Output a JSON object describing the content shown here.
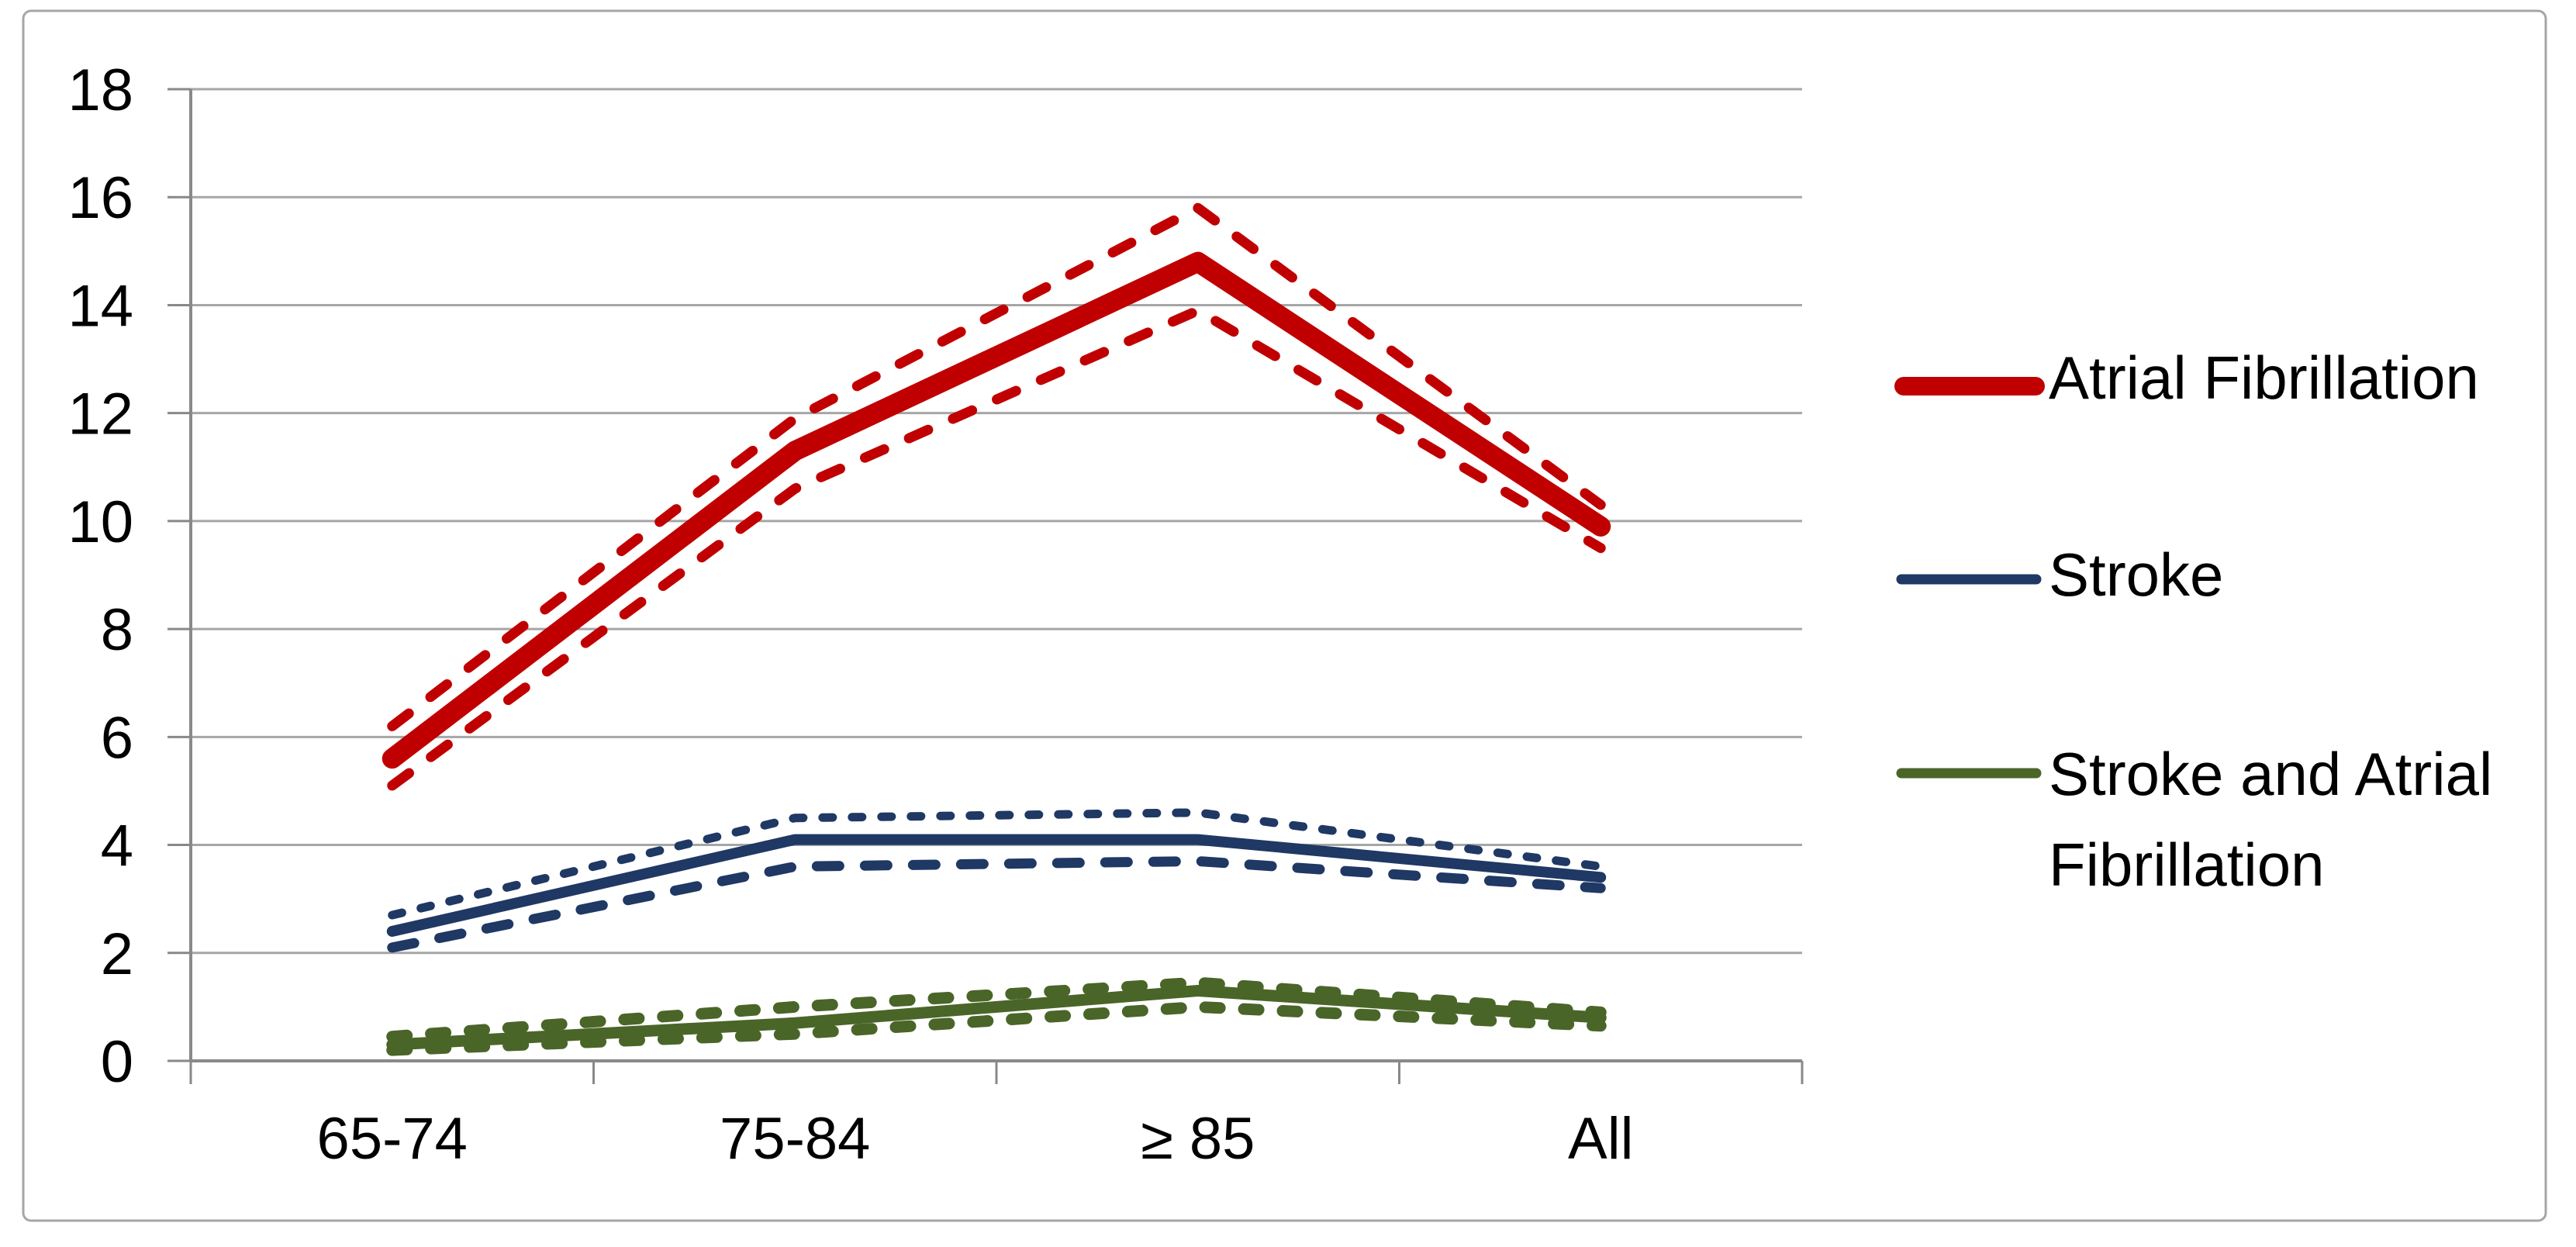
{
  "chart_data": {
    "type": "line",
    "title": "",
    "xlabel": "",
    "ylabel": "",
    "categories": [
      "65-74",
      "75-84",
      "≥ 85",
      "All"
    ],
    "y_axis": {
      "min": 0,
      "max": 18,
      "step": 2,
      "tick_labels": [
        "0",
        "2",
        "4",
        "6",
        "8",
        "10",
        "12",
        "14",
        "16",
        "18"
      ]
    },
    "grid": true,
    "legend_position": "right",
    "grid_color": "#A6A6A6",
    "axis_color": "#898989",
    "series": [
      {
        "name": "Atrial Fibrillation",
        "color": "#C00000",
        "values": [
          5.6,
          11.3,
          14.8,
          9.9
        ],
        "ci_upper": [
          6.2,
          11.9,
          15.8,
          10.3
        ],
        "ci_lower": [
          5.1,
          10.6,
          13.9,
          9.5
        ]
      },
      {
        "name": "Stroke",
        "color": "#1F3864",
        "values": [
          2.4,
          4.1,
          4.1,
          3.4
        ],
        "ci_upper": [
          2.7,
          4.5,
          4.6,
          3.6
        ],
        "ci_lower": [
          2.1,
          3.6,
          3.7,
          3.2
        ]
      },
      {
        "name": "Stroke and Atrial Fibrillation",
        "color": "#4A6528",
        "values": [
          0.3,
          0.7,
          1.3,
          0.8
        ],
        "ci_upper": [
          0.45,
          1.0,
          1.45,
          0.9
        ],
        "ci_lower": [
          0.2,
          0.5,
          1.0,
          0.65
        ]
      }
    ]
  },
  "legend": {
    "items": [
      {
        "label": "Atrial Fibrillation"
      },
      {
        "label": "Stroke"
      },
      {
        "label_line1": "Stroke and Atrial",
        "label_line2": "Fibrillation"
      }
    ]
  }
}
